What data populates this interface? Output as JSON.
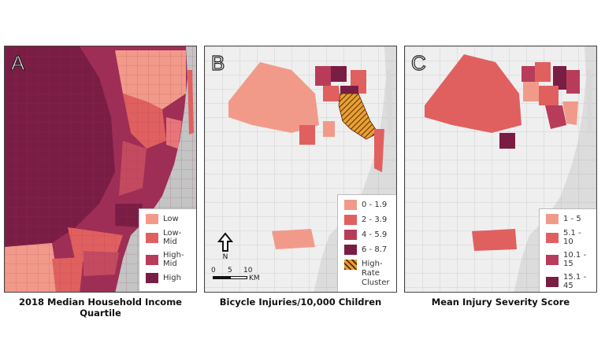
{
  "panels": [
    {
      "label": "A",
      "caption": "2018 Median Household Income Quartile",
      "legend": [
        {
          "label": "Low",
          "color": "#f29a8a"
        },
        {
          "label": "Low-Mid",
          "color": "#e06060"
        },
        {
          "label": "High-Mid",
          "color": "#b83c5a"
        },
        {
          "label": "High",
          "color": "#7a1d45"
        }
      ]
    },
    {
      "label": "B",
      "caption": "Bicycle Injuries/10,000 Children",
      "legend": [
        {
          "label": "0 - 1.9",
          "color": "#f29a8a"
        },
        {
          "label": "2 - 3.9",
          "color": "#e06060"
        },
        {
          "label": "4 - 5.9",
          "color": "#b83c5a"
        },
        {
          "label": "6 - 8.7",
          "color": "#7a1d45"
        },
        {
          "label": "High-Rate Cluster",
          "color": "hatch"
        }
      ],
      "scale": {
        "ticks": [
          "0",
          "5",
          "10"
        ],
        "unit": "KM"
      },
      "north_arrow": "north-arrow-icon"
    },
    {
      "label": "C",
      "caption": "Mean Injury Severity Score",
      "legend": [
        {
          "label": "1 - 5",
          "color": "#f29a8a"
        },
        {
          "label": "5.1 - 10",
          "color": "#e06060"
        },
        {
          "label": "10.1 - 15",
          "color": "#b83c5a"
        },
        {
          "label": "15.1 - 45",
          "color": "#7a1d45"
        }
      ]
    }
  ]
}
